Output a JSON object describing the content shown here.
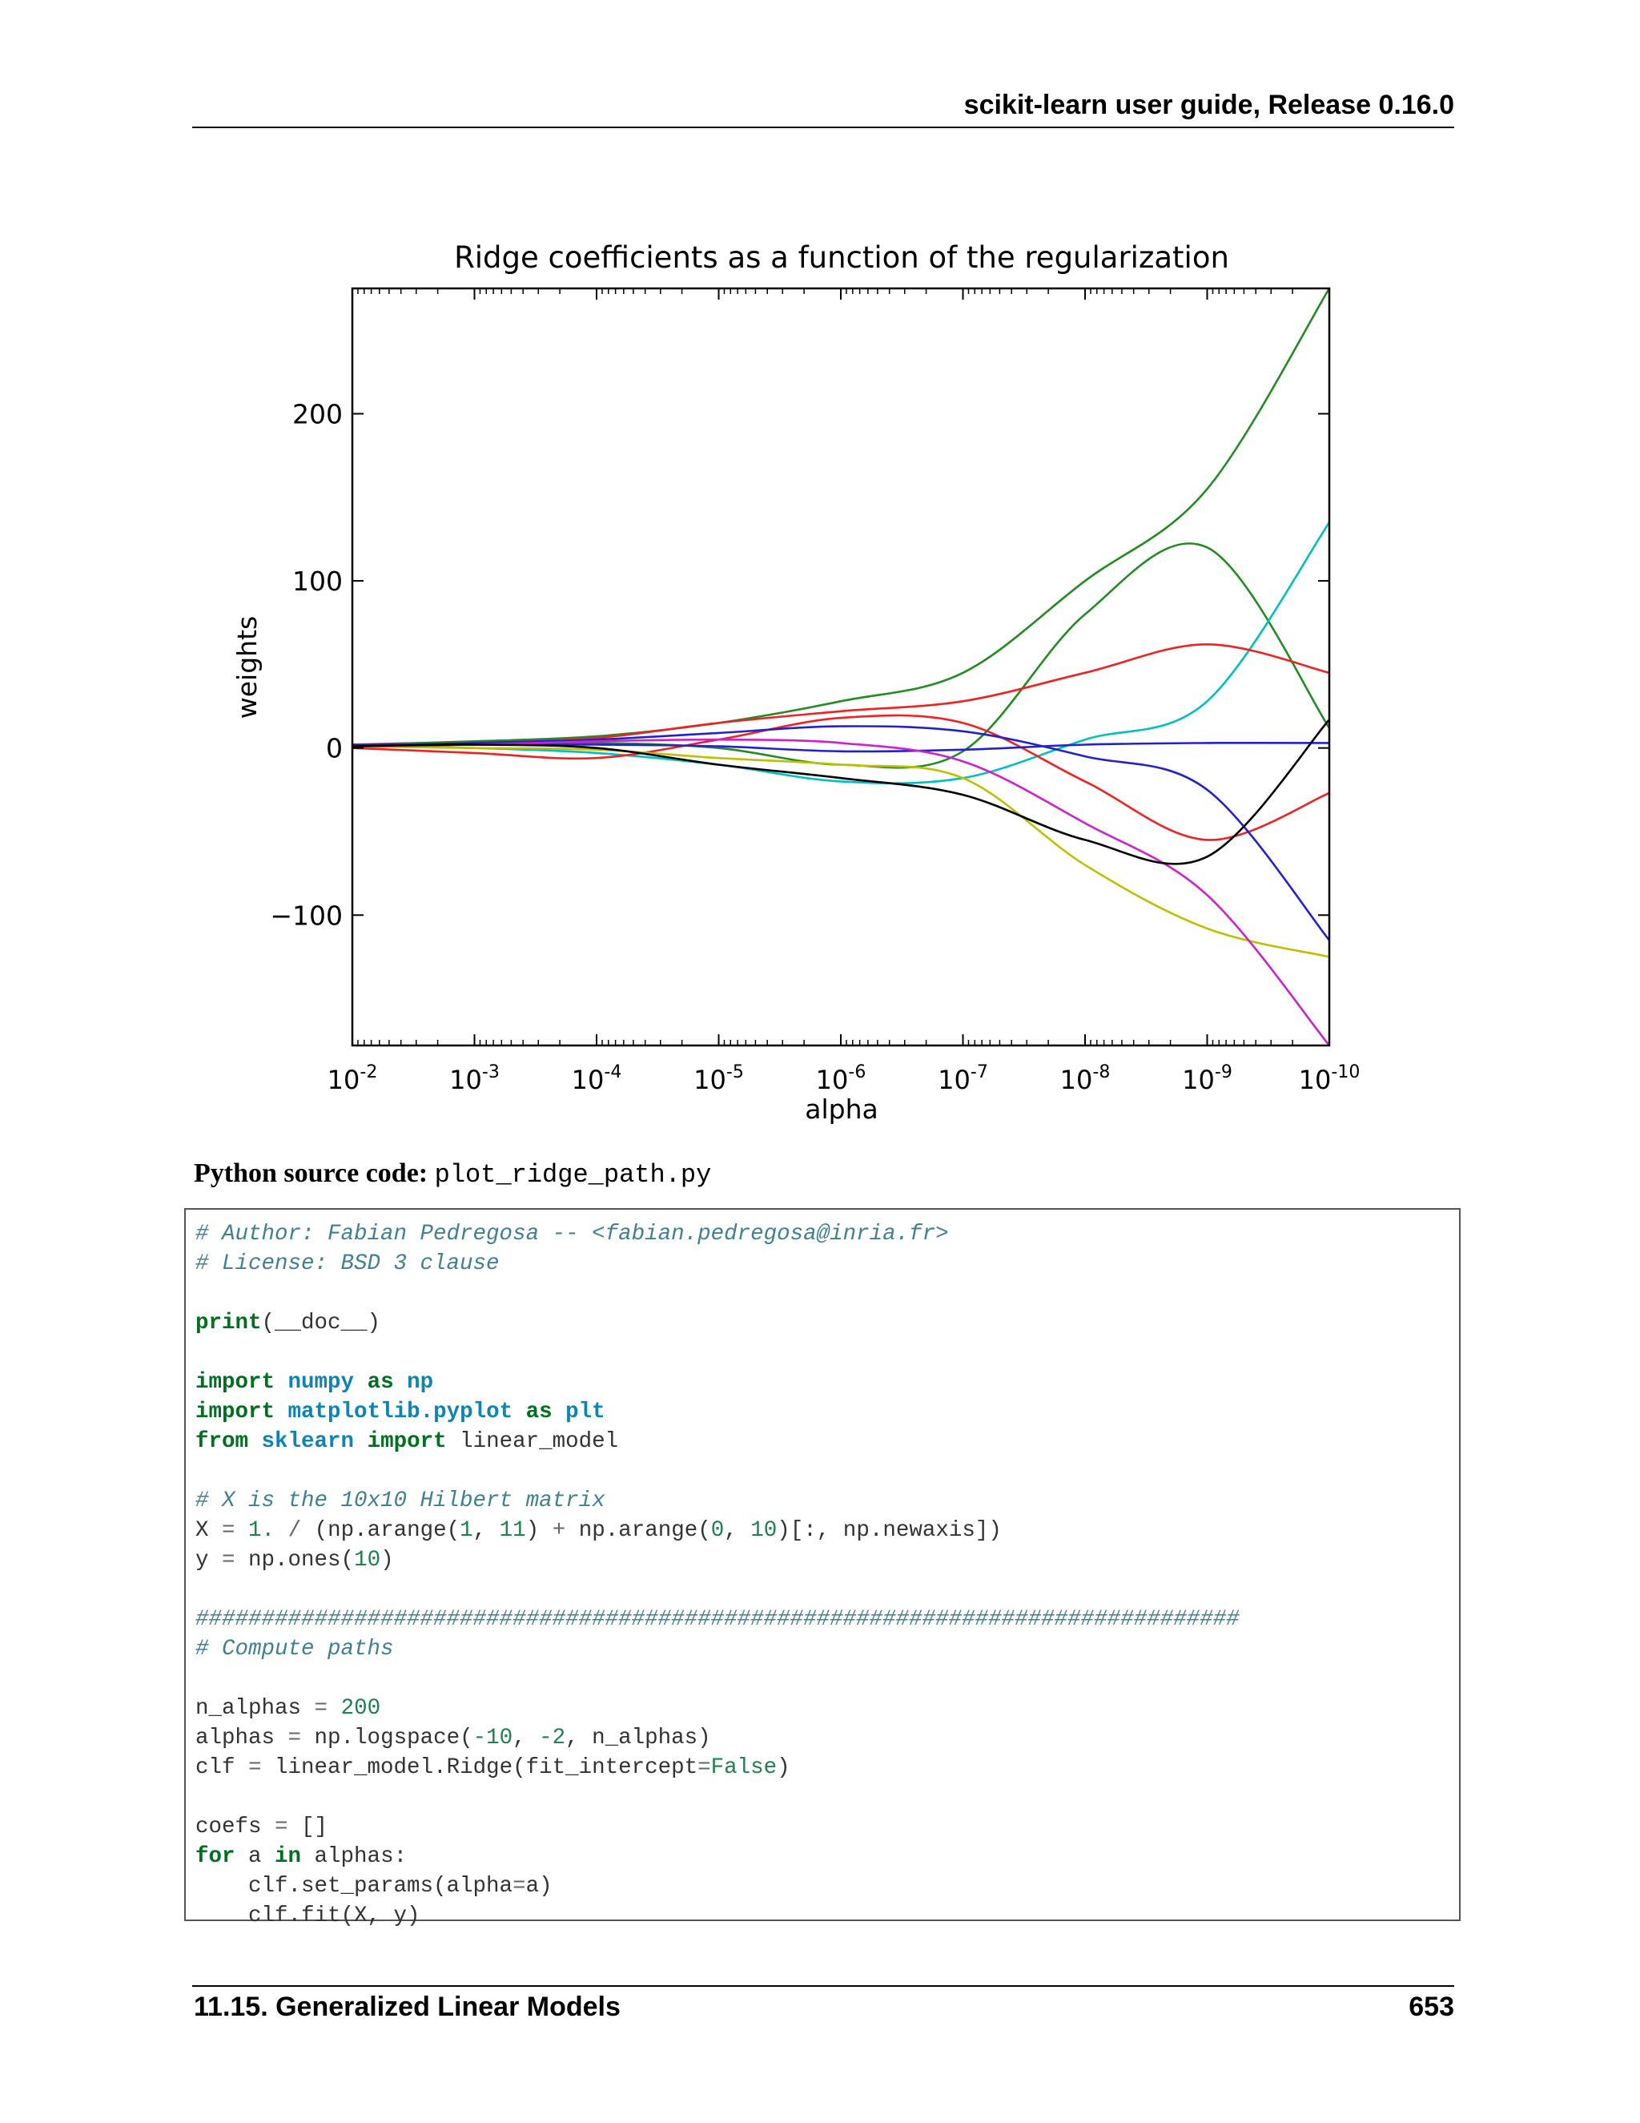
{
  "header": {
    "title": "scikit-learn user guide, Release 0.16.0"
  },
  "chart_data": {
    "type": "line",
    "title": "Ridge coefficients as a function of the regularization",
    "xlabel": "alpha",
    "ylabel": "weights",
    "x_scale": "log",
    "x_reversed": true,
    "xlim": [
      0.01,
      1e-10
    ],
    "ylim": [
      -178,
      275
    ],
    "yticks": [
      -100,
      0,
      100,
      200
    ],
    "ytick_labels": [
      "−100",
      "0",
      "100",
      "200"
    ],
    "xticks": [
      {
        "base": "10",
        "exp": "-2"
      },
      {
        "base": "10",
        "exp": "-3"
      },
      {
        "base": "10",
        "exp": "-4"
      },
      {
        "base": "10",
        "exp": "-5"
      },
      {
        "base": "10",
        "exp": "-6"
      },
      {
        "base": "10",
        "exp": "-7"
      },
      {
        "base": "10",
        "exp": "-8"
      },
      {
        "base": "10",
        "exp": "-9"
      },
      {
        "base": "10",
        "exp": "-10"
      }
    ],
    "x_exponents": [
      -2,
      -3,
      -4,
      -5,
      -6,
      -7,
      -8,
      -9,
      -10
    ],
    "grid": false,
    "series": [
      {
        "color": "#228b22",
        "values": [
          2,
          4,
          7,
          15,
          28,
          45,
          100,
          155,
          275
        ]
      },
      {
        "color": "#228b22",
        "values": [
          1,
          2,
          3,
          0,
          -10,
          -2,
          80,
          120,
          12
        ]
      },
      {
        "color": "#00bfbf",
        "values": [
          1,
          0,
          -3,
          -10,
          -20,
          -18,
          5,
          28,
          135
        ]
      },
      {
        "color": "#ee2222",
        "values": [
          2,
          3,
          6,
          15,
          22,
          28,
          45,
          62,
          45
        ]
      },
      {
        "color": "#ee2222",
        "values": [
          0,
          -3,
          -6,
          5,
          18,
          15,
          -20,
          -55,
          -27
        ]
      },
      {
        "color": "#2222cc",
        "values": [
          1,
          3,
          5,
          9,
          13,
          10,
          -5,
          -25,
          -115
        ]
      },
      {
        "color": "#2222cc",
        "values": [
          2,
          2,
          2,
          1,
          -2,
          -1,
          2,
          3,
          3
        ]
      },
      {
        "color": "#bfbf00",
        "values": [
          1,
          0,
          -1,
          -6,
          -10,
          -18,
          -70,
          -108,
          -125
        ]
      },
      {
        "color": "#cc22cc",
        "values": [
          1,
          2,
          4,
          5,
          3,
          -8,
          -45,
          -88,
          -178
        ]
      },
      {
        "color": "#000000",
        "values": [
          1,
          2,
          0,
          -10,
          -18,
          -28,
          -55,
          -65,
          17
        ]
      }
    ]
  },
  "source": {
    "label": "Python source code:",
    "file": "plot_ridge_path.py"
  },
  "code_lines": [
    [
      [
        "# Author: Fabian Pedregosa -- <fabian.pedregosa@inria.fr>",
        "c"
      ]
    ],
    [
      [
        "# License: BSD 3 clause",
        "c"
      ]
    ],
    [],
    [
      [
        "print",
        "k"
      ],
      [
        "(__doc__)",
        ""
      ]
    ],
    [],
    [
      [
        "import",
        "k"
      ],
      [
        " ",
        ""
      ],
      [
        "numpy",
        "m"
      ],
      [
        " ",
        ""
      ],
      [
        "as",
        "k"
      ],
      [
        " ",
        ""
      ],
      [
        "np",
        "m"
      ]
    ],
    [
      [
        "import",
        "k"
      ],
      [
        " ",
        ""
      ],
      [
        "matplotlib.pyplot",
        "m"
      ],
      [
        " ",
        ""
      ],
      [
        "as",
        "k"
      ],
      [
        " ",
        ""
      ],
      [
        "plt",
        "m"
      ]
    ],
    [
      [
        "from",
        "k"
      ],
      [
        " ",
        ""
      ],
      [
        "sklearn",
        "m"
      ],
      [
        " ",
        ""
      ],
      [
        "import",
        "k"
      ],
      [
        " linear_model",
        ""
      ]
    ],
    [],
    [
      [
        "# X is the 10x10 Hilbert matrix",
        "c"
      ]
    ],
    [
      [
        "X ",
        ""
      ],
      [
        "=",
        "o"
      ],
      [
        " ",
        ""
      ],
      [
        "1.",
        "n"
      ],
      [
        " ",
        ""
      ],
      [
        "/",
        "o"
      ],
      [
        " (np.arange(",
        ""
      ],
      [
        "1",
        "n"
      ],
      [
        ", ",
        ""
      ],
      [
        "11",
        "n"
      ],
      [
        ") ",
        ""
      ],
      [
        "+",
        "o"
      ],
      [
        " np.arange(",
        ""
      ],
      [
        "0",
        "n"
      ],
      [
        ", ",
        ""
      ],
      [
        "10",
        "n"
      ],
      [
        ")[:, np.newaxis])",
        ""
      ]
    ],
    [
      [
        "y ",
        ""
      ],
      [
        "=",
        "o"
      ],
      [
        " np.ones(",
        ""
      ],
      [
        "10",
        "n"
      ],
      [
        ")",
        ""
      ]
    ],
    [],
    [
      [
        "###############################################################################",
        "c"
      ]
    ],
    [
      [
        "# Compute paths",
        "c"
      ]
    ],
    [],
    [
      [
        "n_alphas ",
        ""
      ],
      [
        "=",
        "o"
      ],
      [
        " ",
        ""
      ],
      [
        "200",
        "n"
      ]
    ],
    [
      [
        "alphas ",
        ""
      ],
      [
        "=",
        "o"
      ],
      [
        " np.logspace(",
        ""
      ],
      [
        "-10",
        "n"
      ],
      [
        ", ",
        ""
      ],
      [
        "-2",
        "n"
      ],
      [
        ", n_alphas)",
        ""
      ]
    ],
    [
      [
        "clf ",
        ""
      ],
      [
        "=",
        "o"
      ],
      [
        " linear_model.Ridge(fit_intercept",
        ""
      ],
      [
        "=",
        "o"
      ],
      [
        "False",
        "n"
      ],
      [
        ")",
        ""
      ]
    ],
    [],
    [
      [
        "coefs ",
        ""
      ],
      [
        "=",
        "o"
      ],
      [
        " []",
        ""
      ]
    ],
    [
      [
        "for",
        "k"
      ],
      [
        " a ",
        ""
      ],
      [
        "in",
        "k"
      ],
      [
        " alphas:",
        ""
      ]
    ],
    [
      [
        "    clf.set_params(alpha",
        ""
      ],
      [
        "=",
        "o"
      ],
      [
        "a)",
        ""
      ]
    ],
    [
      [
        "    clf.fit(X, y)",
        ""
      ]
    ]
  ],
  "footer": {
    "section": "11.15.  Generalized Linear Models",
    "page": "653"
  }
}
